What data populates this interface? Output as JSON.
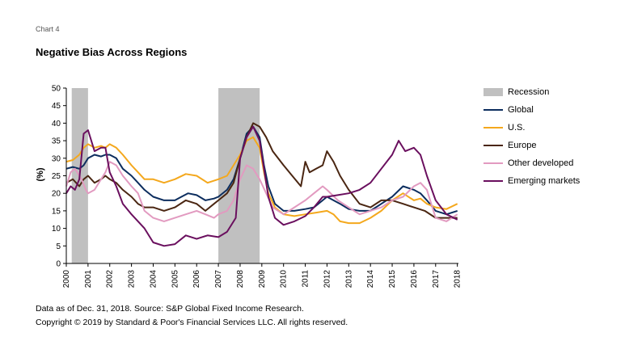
{
  "header": {
    "chart_label": "Chart 4",
    "title": "Negative Bias Across Regions"
  },
  "footer": {
    "source": "Data as of Dec. 31, 2018. Source: S&P Global Fixed Income Research.",
    "copyright": "Copyright © 2019 by Standard & Poor's Financial Services LLC. All rights reserved."
  },
  "chart_data": {
    "type": "line",
    "title": "Negative Bias Across Regions",
    "xlabel": "",
    "ylabel": "(%)",
    "xlim": [
      2000,
      2018.05
    ],
    "ylim": [
      0,
      50
    ],
    "yticks": [
      0,
      5,
      10,
      15,
      20,
      25,
      30,
      35,
      40,
      45,
      50
    ],
    "xticks": [
      "2000",
      "2001",
      "2002",
      "2003",
      "2004",
      "2005",
      "2006",
      "2007",
      "2008",
      "2009",
      "2010",
      "2011",
      "2012",
      "2013",
      "2014",
      "2015",
      "2016",
      "2017",
      "2018"
    ],
    "grid": false,
    "legend": "right",
    "recessions": [
      {
        "name": "Recession",
        "start": 2000.25,
        "end": 2001.0,
        "color": "#c0c0c0"
      },
      {
        "start": 2007.0,
        "end": 2008.9
      }
    ],
    "series": [
      {
        "name": "Global",
        "color": "#0c2d5e",
        "points": [
          [
            2000,
            27
          ],
          [
            2000.3,
            27.5
          ],
          [
            2000.6,
            27
          ],
          [
            2000.8,
            28
          ],
          [
            2001,
            30
          ],
          [
            2001.3,
            31
          ],
          [
            2001.6,
            30.5
          ],
          [
            2001.8,
            31
          ],
          [
            2002,
            31
          ],
          [
            2002.3,
            30
          ],
          [
            2002.6,
            27
          ],
          [
            2003,
            25
          ],
          [
            2003.3,
            23
          ],
          [
            2003.6,
            21
          ],
          [
            2004,
            19
          ],
          [
            2004.5,
            18
          ],
          [
            2005,
            18
          ],
          [
            2005.3,
            19
          ],
          [
            2005.6,
            20
          ],
          [
            2006,
            19.5
          ],
          [
            2006.4,
            18
          ],
          [
            2006.8,
            18.5
          ],
          [
            2007,
            19
          ],
          [
            2007.4,
            21
          ],
          [
            2007.7,
            24
          ],
          [
            2008,
            30
          ],
          [
            2008.3,
            37
          ],
          [
            2008.6,
            39
          ],
          [
            2008.9,
            36
          ],
          [
            2009.1,
            28
          ],
          [
            2009.3,
            22
          ],
          [
            2009.6,
            17
          ],
          [
            2010,
            15
          ],
          [
            2010.5,
            15
          ],
          [
            2011,
            15.5
          ],
          [
            2011.4,
            16
          ],
          [
            2011.8,
            18
          ],
          [
            2012,
            19
          ],
          [
            2012.3,
            18
          ],
          [
            2012.6,
            17
          ],
          [
            2013,
            15.5
          ],
          [
            2013.5,
            15
          ],
          [
            2014,
            15
          ],
          [
            2014.5,
            17
          ],
          [
            2015,
            19
          ],
          [
            2015.5,
            22
          ],
          [
            2016,
            21
          ],
          [
            2016.3,
            20
          ],
          [
            2016.6,
            18
          ],
          [
            2017,
            15
          ],
          [
            2017.5,
            14
          ],
          [
            2018,
            15
          ]
        ]
      },
      {
        "name": "U.S.",
        "color": "#f4a81d",
        "points": [
          [
            2000,
            29
          ],
          [
            2000.3,
            29.5
          ],
          [
            2000.6,
            31
          ],
          [
            2000.8,
            33
          ],
          [
            2001,
            34
          ],
          [
            2001.3,
            33
          ],
          [
            2001.6,
            33.5
          ],
          [
            2001.8,
            33
          ],
          [
            2002,
            34
          ],
          [
            2002.3,
            33
          ],
          [
            2002.6,
            31
          ],
          [
            2003,
            28
          ],
          [
            2003.3,
            26
          ],
          [
            2003.6,
            24
          ],
          [
            2004,
            24
          ],
          [
            2004.5,
            23
          ],
          [
            2005,
            24
          ],
          [
            2005.5,
            25.5
          ],
          [
            2006,
            25
          ],
          [
            2006.5,
            23
          ],
          [
            2007,
            24
          ],
          [
            2007.4,
            25
          ],
          [
            2007.8,
            29
          ],
          [
            2008,
            31
          ],
          [
            2008.3,
            35
          ],
          [
            2008.6,
            36
          ],
          [
            2008.9,
            33
          ],
          [
            2009.1,
            26
          ],
          [
            2009.3,
            20
          ],
          [
            2009.6,
            16
          ],
          [
            2010,
            14
          ],
          [
            2010.5,
            13.5
          ],
          [
            2011,
            14
          ],
          [
            2011.5,
            14.5
          ],
          [
            2012,
            15
          ],
          [
            2012.3,
            14
          ],
          [
            2012.6,
            12
          ],
          [
            2013,
            11.5
          ],
          [
            2013.5,
            11.5
          ],
          [
            2014,
            13
          ],
          [
            2014.5,
            15
          ],
          [
            2015,
            18
          ],
          [
            2015.5,
            20
          ],
          [
            2016,
            18
          ],
          [
            2016.3,
            18.5
          ],
          [
            2016.6,
            17
          ],
          [
            2017,
            16
          ],
          [
            2017.5,
            15.5
          ],
          [
            2018,
            17
          ]
        ]
      },
      {
        "name": "Europe",
        "color": "#4a2612",
        "points": [
          [
            2000,
            23
          ],
          [
            2000.3,
            24
          ],
          [
            2000.6,
            22
          ],
          [
            2000.8,
            24
          ],
          [
            2001,
            25
          ],
          [
            2001.3,
            23
          ],
          [
            2001.6,
            24
          ],
          [
            2001.8,
            25
          ],
          [
            2002,
            24
          ],
          [
            2002.3,
            23
          ],
          [
            2002.6,
            21
          ],
          [
            2003,
            19
          ],
          [
            2003.3,
            17
          ],
          [
            2003.6,
            16
          ],
          [
            2004,
            16
          ],
          [
            2004.5,
            15
          ],
          [
            2005,
            16
          ],
          [
            2005.5,
            18
          ],
          [
            2006,
            17
          ],
          [
            2006.4,
            15
          ],
          [
            2006.8,
            17
          ],
          [
            2007,
            18
          ],
          [
            2007.4,
            20
          ],
          [
            2007.7,
            23
          ],
          [
            2008,
            30
          ],
          [
            2008.3,
            36
          ],
          [
            2008.6,
            40
          ],
          [
            2008.9,
            39
          ],
          [
            2009.2,
            36
          ],
          [
            2009.5,
            32
          ],
          [
            2010,
            28
          ],
          [
            2010.4,
            25
          ],
          [
            2010.8,
            22
          ],
          [
            2011,
            29
          ],
          [
            2011.2,
            26
          ],
          [
            2011.5,
            27
          ],
          [
            2011.8,
            28
          ],
          [
            2012,
            32
          ],
          [
            2012.3,
            29
          ],
          [
            2012.6,
            25
          ],
          [
            2013,
            21
          ],
          [
            2013.5,
            17
          ],
          [
            2014,
            16
          ],
          [
            2014.5,
            18
          ],
          [
            2015,
            18
          ],
          [
            2015.5,
            17
          ],
          [
            2016,
            16
          ],
          [
            2016.5,
            15
          ],
          [
            2017,
            13
          ],
          [
            2017.5,
            13
          ],
          [
            2018,
            13
          ]
        ]
      },
      {
        "name": "Other developed",
        "color": "#e29ac0",
        "points": [
          [
            2000,
            22
          ],
          [
            2000.2,
            26
          ],
          [
            2000.4,
            27
          ],
          [
            2000.7,
            24
          ],
          [
            2000.9,
            21
          ],
          [
            2001,
            20
          ],
          [
            2001.3,
            21
          ],
          [
            2001.6,
            24
          ],
          [
            2001.8,
            26
          ],
          [
            2002,
            29
          ],
          [
            2002.3,
            28
          ],
          [
            2002.6,
            25
          ],
          [
            2003,
            22
          ],
          [
            2003.3,
            20
          ],
          [
            2003.6,
            15
          ],
          [
            2004,
            13
          ],
          [
            2004.5,
            12
          ],
          [
            2005,
            13
          ],
          [
            2005.5,
            14
          ],
          [
            2006,
            15
          ],
          [
            2006.4,
            14
          ],
          [
            2006.8,
            13
          ],
          [
            2007,
            14
          ],
          [
            2007.4,
            15
          ],
          [
            2007.7,
            18
          ],
          [
            2008,
            24
          ],
          [
            2008.3,
            28
          ],
          [
            2008.6,
            27
          ],
          [
            2008.9,
            24
          ],
          [
            2009.2,
            20
          ],
          [
            2009.5,
            16
          ],
          [
            2010,
            14
          ],
          [
            2010.5,
            16
          ],
          [
            2011,
            18
          ],
          [
            2011.4,
            20
          ],
          [
            2011.8,
            22
          ],
          [
            2012,
            21
          ],
          [
            2012.5,
            18
          ],
          [
            2013,
            16
          ],
          [
            2013.5,
            14
          ],
          [
            2014,
            15
          ],
          [
            2014.5,
            16
          ],
          [
            2015,
            18
          ],
          [
            2015.5,
            19
          ],
          [
            2016,
            22
          ],
          [
            2016.3,
            23
          ],
          [
            2016.6,
            21
          ],
          [
            2017,
            13
          ],
          [
            2017.5,
            12
          ],
          [
            2018,
            14
          ]
        ]
      },
      {
        "name": "Emerging markets",
        "color": "#6a0f5e",
        "points": [
          [
            2000,
            20
          ],
          [
            2000.2,
            22
          ],
          [
            2000.4,
            21
          ],
          [
            2000.6,
            24
          ],
          [
            2000.8,
            37
          ],
          [
            2001,
            38
          ],
          [
            2001.3,
            32
          ],
          [
            2001.6,
            33
          ],
          [
            2001.8,
            33
          ],
          [
            2002,
            26
          ],
          [
            2002.3,
            22
          ],
          [
            2002.6,
            17
          ],
          [
            2003,
            14
          ],
          [
            2003.3,
            12
          ],
          [
            2003.6,
            10
          ],
          [
            2004,
            6
          ],
          [
            2004.5,
            5
          ],
          [
            2005,
            5.5
          ],
          [
            2005.5,
            8
          ],
          [
            2006,
            7
          ],
          [
            2006.5,
            8
          ],
          [
            2007,
            7.5
          ],
          [
            2007.4,
            9
          ],
          [
            2007.8,
            13
          ],
          [
            2008,
            30
          ],
          [
            2008.3,
            36
          ],
          [
            2008.6,
            39
          ],
          [
            2008.9,
            35
          ],
          [
            2009.1,
            27
          ],
          [
            2009.3,
            19
          ],
          [
            2009.6,
            13
          ],
          [
            2010,
            11
          ],
          [
            2010.5,
            12
          ],
          [
            2011,
            13.5
          ],
          [
            2011.4,
            16
          ],
          [
            2011.8,
            19
          ],
          [
            2012,
            19
          ],
          [
            2012.5,
            19.5
          ],
          [
            2013,
            20
          ],
          [
            2013.5,
            21
          ],
          [
            2014,
            23
          ],
          [
            2014.5,
            27
          ],
          [
            2015,
            31
          ],
          [
            2015.3,
            35
          ],
          [
            2015.6,
            32
          ],
          [
            2016,
            33
          ],
          [
            2016.3,
            31
          ],
          [
            2016.6,
            25
          ],
          [
            2017,
            18
          ],
          [
            2017.5,
            14
          ],
          [
            2018,
            12.5
          ]
        ]
      }
    ]
  }
}
